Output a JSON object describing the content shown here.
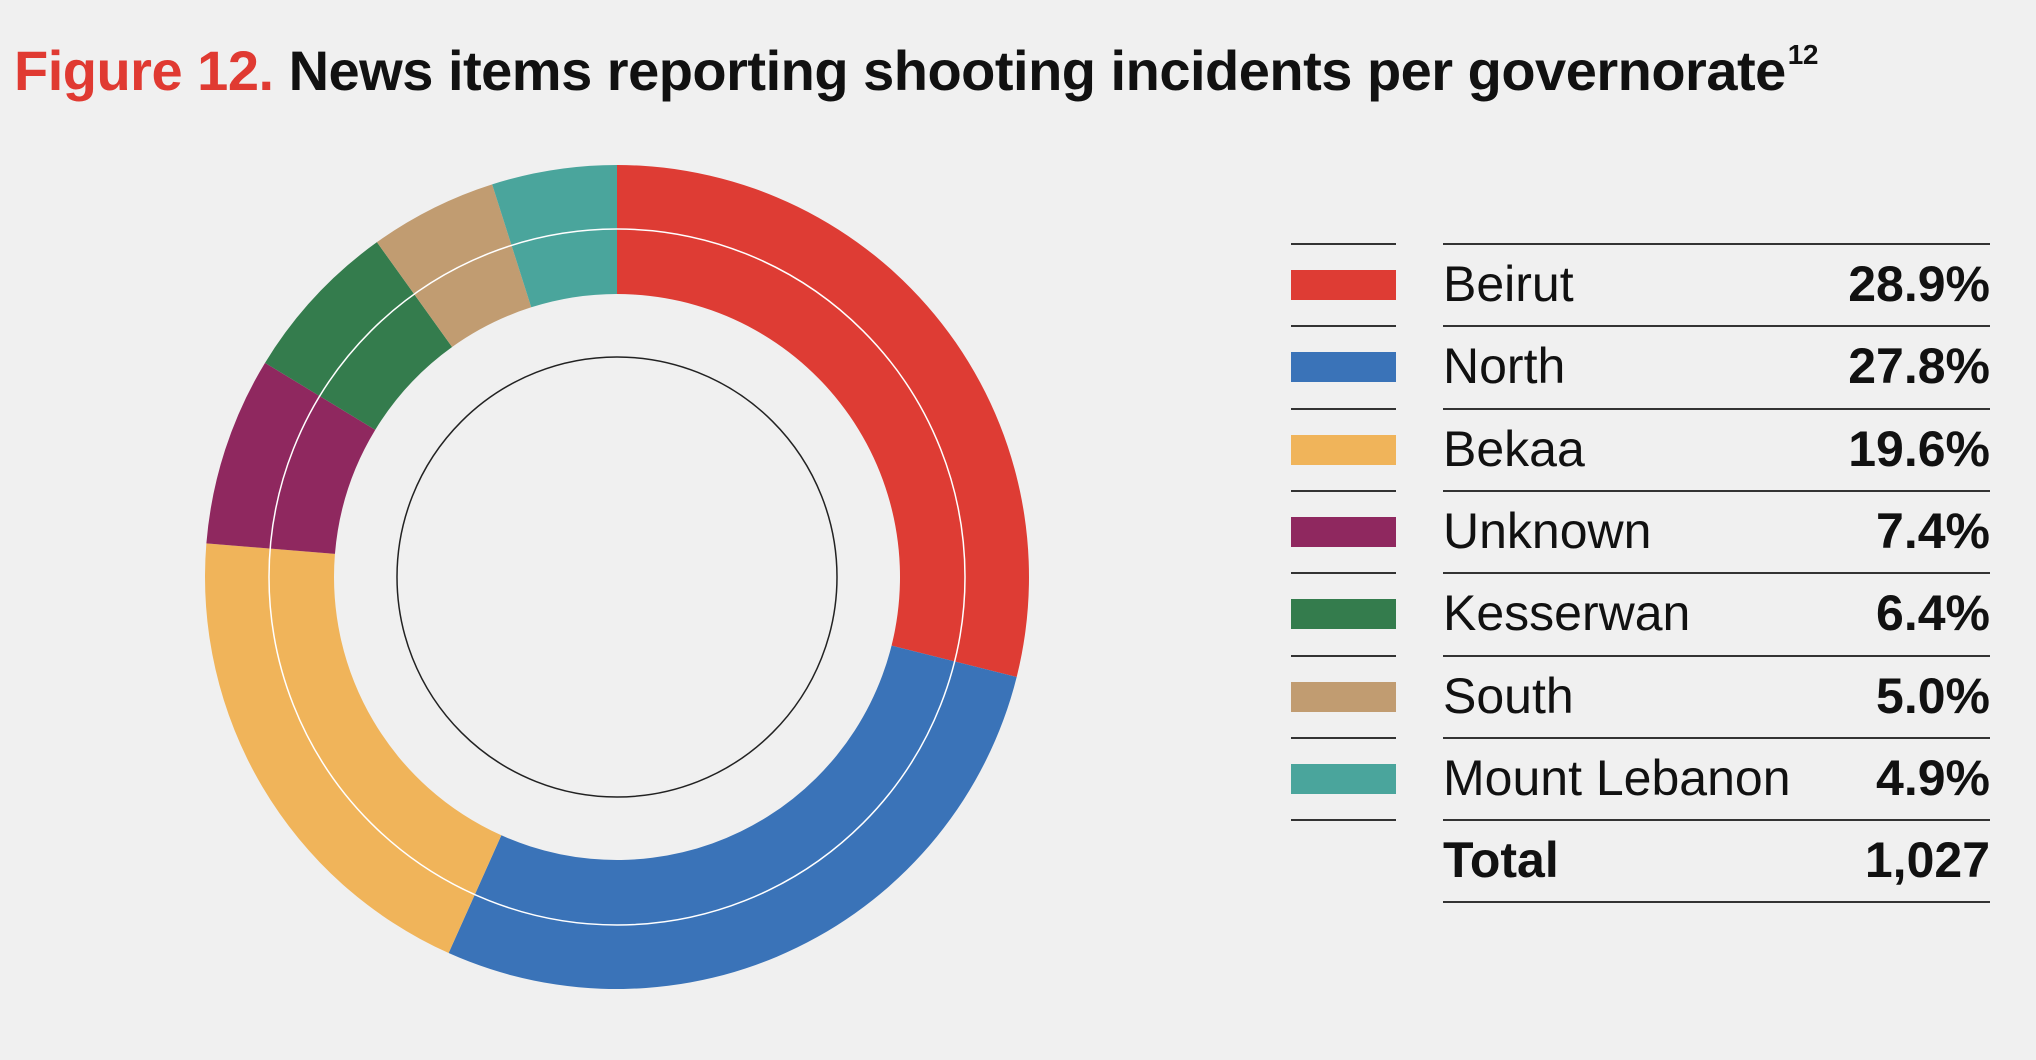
{
  "title": {
    "figure_label": "Figure 12.",
    "text": "News items reporting shooting incidents per governorate",
    "footnote": "12"
  },
  "chart_data": {
    "type": "pie",
    "categories": [
      "Beirut",
      "North",
      "Bekaa",
      "Unknown",
      "Kesserwan",
      "South",
      "Mount Lebanon"
    ],
    "values": [
      28.9,
      27.8,
      19.6,
      7.4,
      6.4,
      5.0,
      4.9
    ],
    "value_labels": [
      "28.9%",
      "27.8%",
      "19.6%",
      "7.4%",
      "6.4%",
      "5.0%",
      "4.9%"
    ],
    "colors": [
      "#de3c34",
      "#3a73b8",
      "#f0b45a",
      "#8f285f",
      "#347c4d",
      "#c19c71",
      "#4aa59c"
    ],
    "total_label": "Total",
    "total_value": "1,027",
    "legend_position": "right"
  }
}
